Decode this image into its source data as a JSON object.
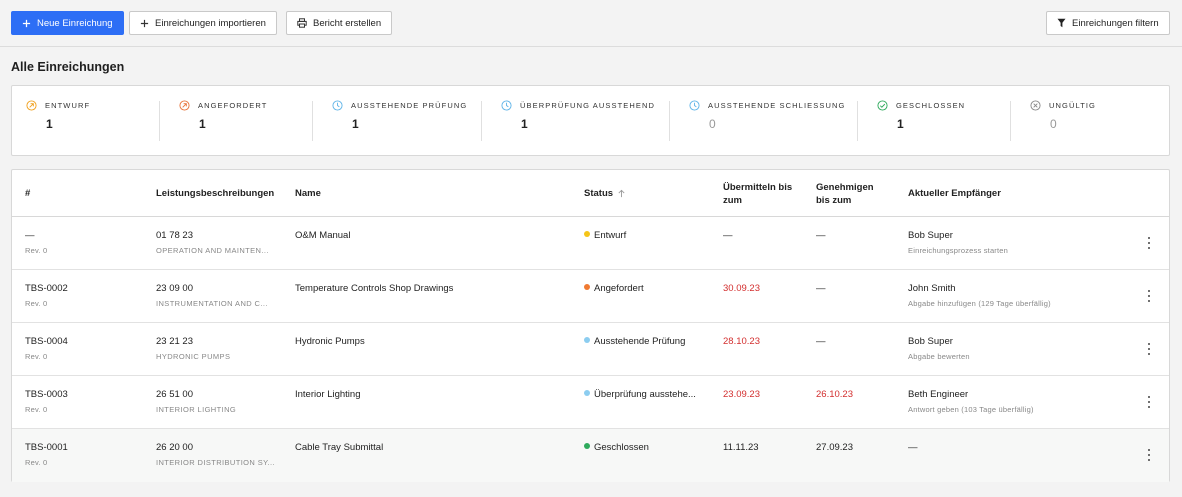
{
  "toolbar": {
    "new_label": "Neue Einreichung",
    "import_label": "Einreichungen importieren",
    "report_label": "Bericht erstellen",
    "filter_label": "Einreichungen filtern"
  },
  "page": {
    "title": "Alle Einreichungen"
  },
  "summary": [
    {
      "label": "Entwurf",
      "count": "1",
      "color": "#f0a01c",
      "icon": "arrow-up-right-circle-icon"
    },
    {
      "label": "Angefordert",
      "count": "1",
      "color": "#e8733a",
      "icon": "arrow-up-right-circle-icon"
    },
    {
      "label": "Ausstehende Prüfung",
      "count": "1",
      "color": "#5fb4e8",
      "icon": "clock-icon"
    },
    {
      "label": "Überprüfung ausstehend",
      "count": "1",
      "color": "#5fb4e8",
      "icon": "clock-icon"
    },
    {
      "label": "Ausstehende Schliessung",
      "count": "0",
      "color": "#5fb4e8",
      "icon": "clock-icon"
    },
    {
      "label": "Geschlossen",
      "count": "1",
      "color": "#2eaa5c",
      "icon": "check-circle-icon"
    },
    {
      "label": "Ungültig",
      "count": "0",
      "color": "#888888",
      "icon": "x-circle-icon"
    }
  ],
  "table": {
    "headers": {
      "num": "#",
      "spec": "Leistungsbeschreibungen",
      "name": "Name",
      "status": "Status",
      "submit_1": "Übermitteln bis",
      "submit_2": "zum",
      "approve_1": "Genehmigen",
      "approve_2": "bis zum",
      "recipient": "Aktueller Empfänger"
    },
    "rows": [
      {
        "num": "—",
        "rev": "Rev. 0",
        "spec_code": "01 78 23",
        "spec_desc": "OPERATION AND MAINTEN...",
        "name": "O&M Manual",
        "status": "Entwurf",
        "status_color": "#f5c518",
        "submit": "—",
        "approve": "—",
        "recipient": "Bob Super",
        "recipient_note": "Einreichungsprozess starten"
      },
      {
        "num": "TBS-0002",
        "rev": "Rev. 0",
        "spec_code": "23 09 00",
        "spec_desc": "INSTRUMENTATION AND C...",
        "name": "Temperature Controls Shop Drawings",
        "status": "Angefordert",
        "status_color": "#f07a32",
        "submit": "30.09.23",
        "approve": "—",
        "recipient": "John Smith",
        "recipient_note": "Abgabe hinzufügen (129 Tage überfällig)"
      },
      {
        "num": "TBS-0004",
        "rev": "Rev. 0",
        "spec_code": "23 21 23",
        "spec_desc": "HYDRONIC PUMPS",
        "name": "Hydronic Pumps",
        "status": "Ausstehende Prüfung",
        "status_color": "#8ccdf0",
        "submit": "28.10.23",
        "approve": "—",
        "recipient": "Bob Super",
        "recipient_note": "Abgabe bewerten"
      },
      {
        "num": "TBS-0003",
        "rev": "Rev. 0",
        "spec_code": "26 51 00",
        "spec_desc": "INTERIOR LIGHTING",
        "name": "Interior Lighting",
        "status": "Überprüfung ausstehe...",
        "status_color": "#8ccdf0",
        "submit": "23.09.23",
        "approve": "26.10.23",
        "recipient": "Beth Engineer",
        "recipient_note": "Antwort geben (103 Tage überfällig)"
      },
      {
        "num": "TBS-0001",
        "rev": "Rev. 0",
        "spec_code": "26 20 00",
        "spec_desc": "INTERIOR DISTRIBUTION SY...",
        "name": "Cable Tray Submittal",
        "status": "Geschlossen",
        "status_color": "#2eaa5c",
        "submit": "11.11.23",
        "approve": "27.09.23",
        "recipient": "—",
        "recipient_note": ""
      }
    ]
  }
}
